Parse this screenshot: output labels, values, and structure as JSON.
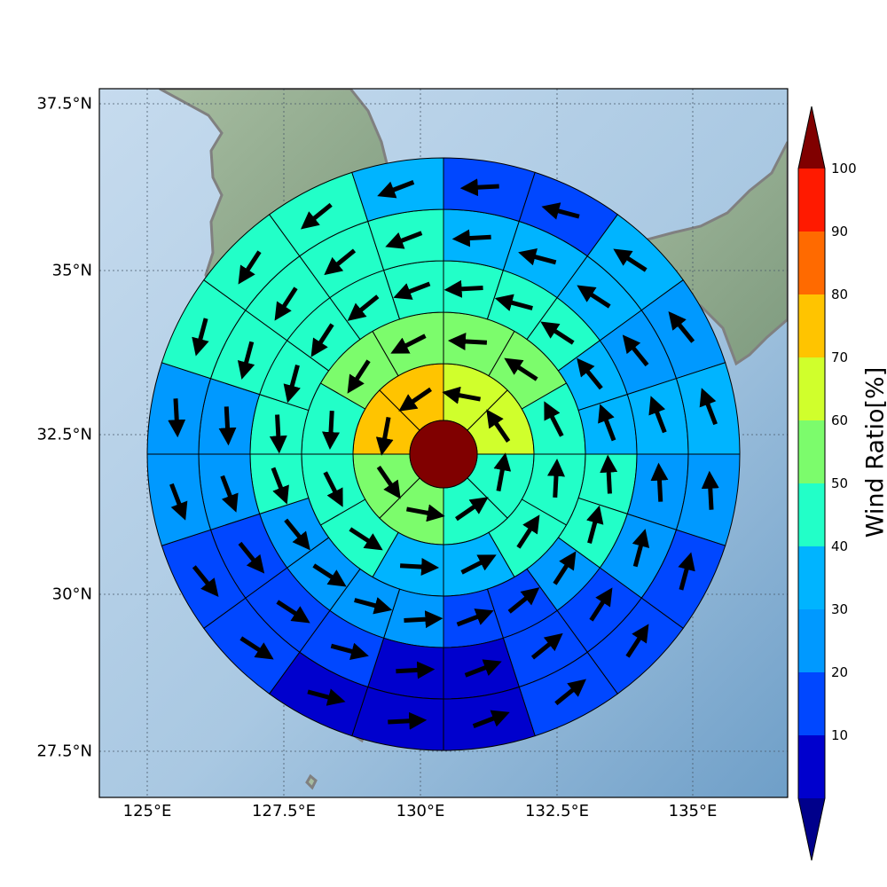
{
  "map": {
    "lon_ticks": [
      "125°E",
      "127.5°E",
      "130°E",
      "132.5°E",
      "135°E"
    ],
    "lat_ticks": [
      "37.5°N",
      "35°N",
      "32.5°N",
      "30°N",
      "27.5°N"
    ]
  },
  "colorbar": {
    "title": "Wind Ratio[%]",
    "ticks": [
      "10",
      "20",
      "30",
      "40",
      "50",
      "60",
      "70",
      "80",
      "90",
      "100"
    ],
    "colors": [
      "#0000cd",
      "#0047ff",
      "#0099ff",
      "#00b4ff",
      "#22ffc8",
      "#7cfc6c",
      "#d0ff2c",
      "#ffc400",
      "#ff6a00",
      "#ff1a00"
    ],
    "under_color": "#00008b",
    "over_color": "#800000"
  },
  "rings": {
    "center_color": "#800000",
    "ring1": [
      "#d0ff2c",
      "#d0ff2c",
      "#22ffc8",
      "#22ffc8",
      "#7cfc6c",
      "#7cfc6c",
      "#ffc400",
      "#ffc400"
    ],
    "ring2": [
      "#7cfc6c",
      "#7cfc6c",
      "#22ffc8",
      "#22ffc8",
      "#22ffc8",
      "#00b4ff",
      "#00b4ff",
      "#22ffc8",
      "#22ffc8",
      "#22ffc8",
      "#7cfc6c",
      "#7cfc6c"
    ],
    "ring3": [
      "#22ffc8",
      "#22ffc8",
      "#22ffc8",
      "#00b4ff",
      "#00b4ff",
      "#22ffc8",
      "#22ffc8",
      "#0099ff",
      "#0047ff",
      "#0047ff",
      "#0099ff",
      "#0099ff",
      "#0099ff",
      "#0099ff",
      "#22ffc8",
      "#22ffc8",
      "#22ffc8",
      "#22ffc8",
      "#22ffc8",
      "#22ffc8"
    ],
    "ring4": [
      "#00b4ff",
      "#00b4ff",
      "#00b4ff",
      "#0099ff",
      "#00b4ff",
      "#0099ff",
      "#0099ff",
      "#0047ff",
      "#0047ff",
      "#0000cd",
      "#0000cd",
      "#0047ff",
      "#0047ff",
      "#0047ff",
      "#0099ff",
      "#0099ff",
      "#22ffc8",
      "#22ffc8",
      "#22ffc8",
      "#22ffc8"
    ],
    "ring5": [
      "#0047ff",
      "#0047ff",
      "#00b4ff",
      "#0099ff",
      "#00b4ff",
      "#0099ff",
      "#0047ff",
      "#0047ff",
      "#0047ff",
      "#0000cd",
      "#0000cd",
      "#0000cd",
      "#0047ff",
      "#0047ff",
      "#0099ff",
      "#0099ff",
      "#22ffc8",
      "#22ffc8",
      "#22ffc8",
      "#00b4ff"
    ]
  }
}
